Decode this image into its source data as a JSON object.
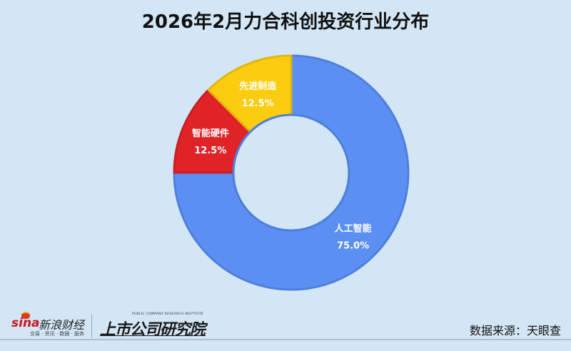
{
  "title": "2026年2月力合科创投资行业分布",
  "chart_data": {
    "type": "pie",
    "donut": true,
    "title": "2026年2月力合科创投资行业分布",
    "categories": [
      "人工智能",
      "智能硬件",
      "先进制造"
    ],
    "values": [
      75.0,
      12.5,
      12.5
    ],
    "labels": [
      "75.0%",
      "12.5%",
      "12.5%"
    ],
    "colors": [
      "#5b8ff2",
      "#e02327",
      "#fbcc10"
    ],
    "stroke_colors": [
      "#4f7fdc",
      "#c91f24",
      "#e3b60e"
    ],
    "start_angle_deg": 0,
    "direction": "clockwise",
    "legend": "none",
    "xlabel": "",
    "ylabel": ""
  },
  "slices": [
    {
      "name": "人工智能",
      "pct": "75.0%"
    },
    {
      "name": "智能硬件",
      "pct": "12.5%"
    },
    {
      "name": "先进制造",
      "pct": "12.5%"
    }
  ],
  "footer": {
    "sina_brand": "sina",
    "sina_cn": "新浪财经",
    "sina_sub": "交易 · 资讯 · 数据 · 服务",
    "institute_en": "PUBLIC COMPANY RESEARCH INSTITUTE",
    "institute_cn": "上市公司研究院",
    "source": "数据来源：天眼查"
  },
  "colors": {
    "background": "#d3e6f5",
    "title": "#111111"
  }
}
